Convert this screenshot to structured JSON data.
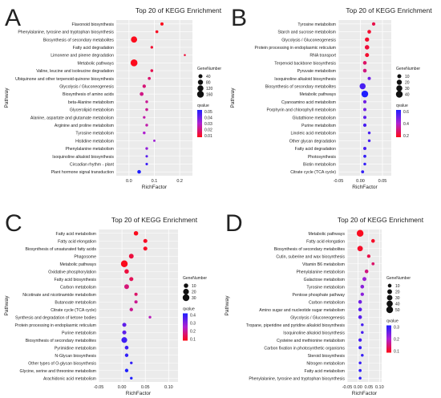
{
  "chart_data": [
    {
      "panel_letter": "A",
      "type": "scatter",
      "title": "Top 20 of KEGG Enrichment",
      "xlabel": "RichFactor",
      "ylabel": "Pathway",
      "xlim": [
        -0.05,
        0.25
      ],
      "xticks": [
        "0.0",
        "0.1",
        "0.2"
      ],
      "xtick_values": [
        0.0,
        0.1,
        0.2
      ],
      "size_legend_title": "GeneNumber",
      "size_legend": [
        40,
        80,
        120,
        160
      ],
      "color_legend_title": "qvalue",
      "color_legend_ticks": [
        "0.05",
        "0.04",
        "0.03",
        "0.02",
        "0.01"
      ],
      "color_legend_range": [
        0.0,
        0.05
      ],
      "pathways": [
        "Flavonoid biosynthesis",
        "Phenylalanine, tyrosine and tryptophan biosynthesis",
        "Biosynthesis of secondary metabolites",
        "Fatty acid degradation",
        "Limonene and pinene degradation",
        "Metabolic pathways",
        "Valine, leucine and isoleucine degradation",
        "Ubiquinone and other terpenoid-quinone biosynthesis",
        "Glycolysis / Gluconeogenesis",
        "Biosynthesis of amino acids",
        "beta-Alanine metabolism",
        "Glycerolipid metabolism",
        "Alanine, aspartate and glutamate metabolism",
        "Arginine and proline metabolism",
        "Tyrosine metabolism",
        "Histidine metabolism",
        "Phenylalanine metabolism",
        "Isoquinoline alkaloid biosynthesis",
        "Circadian rhythm - plant",
        "Plant hormone signal transduction"
      ],
      "rich_factor": [
        0.13,
        0.11,
        0.02,
        0.09,
        0.22,
        0.02,
        0.09,
        0.08,
        0.06,
        0.05,
        0.07,
        0.07,
        0.06,
        0.07,
        0.06,
        0.1,
        0.07,
        0.07,
        0.07,
        0.04
      ],
      "gene_number": [
        20,
        15,
        130,
        10,
        3,
        170,
        14,
        15,
        25,
        35,
        12,
        14,
        10,
        12,
        12,
        6,
        11,
        8,
        8,
        30
      ],
      "qvalue": [
        0.001,
        0.002,
        0.001,
        0.004,
        0.005,
        0.001,
        0.008,
        0.012,
        0.013,
        0.015,
        0.017,
        0.017,
        0.02,
        0.02,
        0.025,
        0.028,
        0.03,
        0.04,
        0.045,
        0.055
      ]
    },
    {
      "panel_letter": "B",
      "type": "scatter",
      "title": "Top 20 of KEGG Enrichment",
      "xlabel": "RichFactor",
      "ylabel": "Pathway",
      "xlim": [
        -0.05,
        0.07
      ],
      "xticks": [
        "-0.05",
        "0.00",
        "0.05"
      ],
      "xtick_values": [
        -0.05,
        0.0,
        0.05
      ],
      "size_legend_title": "GeneNumber",
      "size_legend": [
        10,
        20,
        30,
        40
      ],
      "color_legend_title": "qvalue",
      "color_legend_ticks": [
        "0.6",
        "0.4",
        "0.2"
      ],
      "color_legend_range": [
        0.0,
        0.7
      ],
      "pathways": [
        "Tyrosine metabolism",
        "Starch and sucrose metabolism",
        "Glycolysis / Gluconeogenesis",
        "Protein processing in endoplasmic reticulum",
        "RNA transport",
        "Terpenoid backbone biosynthesis",
        "Pyruvate metabolism",
        "Isoquinoline alkaloid biosynthesis",
        "Biosynthesis of secondary metabolites",
        "Metabolic pathways",
        "Cyanoamino acid metabolism",
        "Porphyrin and chlorophyll metabolism",
        "Glutathione metabolism",
        "Purine metabolism",
        "Linoleic acid metabolism",
        "Other glycan degradation",
        "Fatty acid degradation",
        "Photosynthesis",
        "Biotin metabolism",
        "Citrate cycle (TCA cycle)"
      ],
      "rich_factor": [
        0.03,
        0.02,
        0.015,
        0.015,
        0.015,
        0.01,
        0.01,
        0.02,
        0.005,
        0.01,
        0.01,
        0.01,
        0.01,
        0.01,
        0.02,
        0.02,
        0.01,
        0.01,
        0.01,
        0.005
      ],
      "gene_number": [
        6,
        8,
        12,
        14,
        10,
        8,
        8,
        5,
        30,
        40,
        6,
        5,
        5,
        6,
        3,
        3,
        5,
        4,
        3,
        4
      ],
      "qvalue": [
        0.1,
        0.05,
        0.05,
        0.07,
        0.05,
        0.15,
        0.2,
        0.5,
        0.6,
        0.7,
        0.5,
        0.5,
        0.55,
        0.6,
        0.6,
        0.6,
        0.6,
        0.65,
        0.65,
        0.65
      ]
    },
    {
      "panel_letter": "C",
      "type": "scatter",
      "title": "Top 20 of KEGG Enrichment",
      "xlabel": "RichFactor",
      "ylabel": "Pathway",
      "xlim": [
        -0.05,
        0.12
      ],
      "xticks": [
        "-0.05",
        "0.00",
        "0.05",
        "0.10"
      ],
      "xtick_values": [
        -0.05,
        0.0,
        0.05,
        0.1
      ],
      "size_legend_title": "GeneNumber",
      "size_legend": [
        10,
        20,
        30
      ],
      "color_legend_title": "qvalue",
      "color_legend_ticks": [
        "0.4",
        "0.3",
        "0.2",
        "0.1"
      ],
      "color_legend_range": [
        0.0,
        0.45
      ],
      "pathways": [
        "Fatty acid metabolism",
        "Fatty acid elongation",
        "Biosynthesis of unsaturated fatty acids",
        "Phagosome",
        "Metabolic pathways",
        "Oxidative phosphorylation",
        "Fatty acid biosynthesis",
        "Carbon metabolism",
        "Nicotinate and nicotinamide metabolism",
        "Butanoate metabolism",
        "Citrate cycle (TCA cycle)",
        "Synthesis and degradation of ketone bodies",
        "Protein processing in endoplasmic reticulum",
        "Purine metabolism",
        "Biosynthesis of secondary metabolites",
        "Pyrimidine metabolism",
        "N-Glycan biosynthesis",
        "Other types of O-glycan biosynthesis",
        "Glycine, serine and threonine metabolism",
        "Arachidonic acid metabolism"
      ],
      "rich_factor": [
        0.03,
        0.05,
        0.05,
        0.02,
        0.005,
        0.01,
        0.02,
        0.01,
        0.03,
        0.03,
        0.02,
        0.06,
        0.005,
        0.005,
        0.005,
        0.01,
        0.01,
        0.02,
        0.01,
        0.02
      ],
      "gene_number": [
        10,
        8,
        8,
        12,
        30,
        10,
        8,
        12,
        4,
        4,
        5,
        2,
        8,
        8,
        20,
        6,
        5,
        2,
        5,
        2
      ],
      "qvalue": [
        0.01,
        0.02,
        0.02,
        0.05,
        0.01,
        0.05,
        0.08,
        0.12,
        0.1,
        0.15,
        0.15,
        0.2,
        0.35,
        0.35,
        0.4,
        0.4,
        0.42,
        0.42,
        0.45,
        0.45
      ]
    },
    {
      "panel_letter": "D",
      "type": "scatter",
      "title": "Top 20 of KEGG Enrichment",
      "xlabel": "RichFactor",
      "ylabel": "Pathway",
      "xlim": [
        -0.05,
        0.11
      ],
      "xticks": [
        "-0.05",
        "0.00",
        "0.05",
        "0.10"
      ],
      "xtick_values": [
        -0.05,
        0.0,
        0.05,
        0.1
      ],
      "size_legend_title": "GeneNumber",
      "size_legend": [
        10,
        20,
        30,
        40,
        50
      ],
      "color_legend_title": "qvalue",
      "color_legend_ticks": [
        "0.3",
        "0.2",
        "0.1"
      ],
      "color_legend_range": [
        0.0,
        0.35
      ],
      "pathways": [
        "Metabolic pathways",
        "Fatty acid elongation",
        "Biosynthesis of secondary metabolites",
        "Cutin, suberine and wax biosynthesis",
        "Vitamin B6 metabolism",
        "Phenylalanine metabolism",
        "Galactose metabolism",
        "Tyrosine metabolism",
        "Pentose phosphate pathway",
        "Carbon metabolism",
        "Amino sugar and nucleotide sugar metabolism",
        "Glycolysis / Gluconeogenesis",
        "Tropane, piperidine and pyridine alkaloid biosynthesis",
        "Isoquinoline alkaloid biosynthesis",
        "Cysteine and methionine metabolism",
        "Carbon fixation in photosynthetic organisms",
        "Steroid biosynthesis",
        "Nitrogen metabolism",
        "Fatty acid metabolism",
        "Phenylalanine, tyrosine and tryptophan biosynthesis"
      ],
      "rich_factor": [
        0.01,
        0.07,
        0.01,
        0.05,
        0.07,
        0.04,
        0.03,
        0.02,
        0.02,
        0.01,
        0.01,
        0.01,
        0.02,
        0.02,
        0.01,
        0.01,
        0.02,
        0.01,
        0.01,
        0.01
      ],
      "gene_number": [
        50,
        10,
        30,
        8,
        5,
        10,
        12,
        10,
        8,
        10,
        10,
        10,
        4,
        4,
        8,
        6,
        4,
        4,
        5,
        4
      ],
      "qvalue": [
        0.01,
        0.02,
        0.02,
        0.05,
        0.08,
        0.1,
        0.2,
        0.22,
        0.22,
        0.25,
        0.28,
        0.28,
        0.3,
        0.3,
        0.3,
        0.32,
        0.32,
        0.32,
        0.33,
        0.33
      ]
    }
  ]
}
